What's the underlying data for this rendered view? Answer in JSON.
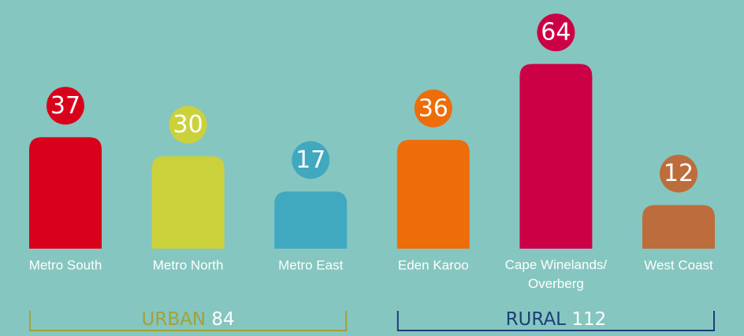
{
  "chart_data": {
    "type": "bar",
    "categories": [
      "Metro South",
      "Metro North",
      "Metro East",
      "Eden Karoo",
      "Cape Winelands/\nOverberg",
      "West Coast"
    ],
    "values": [
      37,
      30,
      17,
      36,
      64,
      12
    ],
    "colors": [
      "#d9001b",
      "#cbd13b",
      "#41a9bf",
      "#ed6d0b",
      "#cc0044",
      "#bd6d3b"
    ],
    "groups": [
      {
        "name": "URBAN",
        "total": 84,
        "color": "#a3a13a"
      },
      {
        "name": "RURAL",
        "total": 112,
        "color": "#1d3f78"
      }
    ],
    "background": "#86c6c0"
  }
}
